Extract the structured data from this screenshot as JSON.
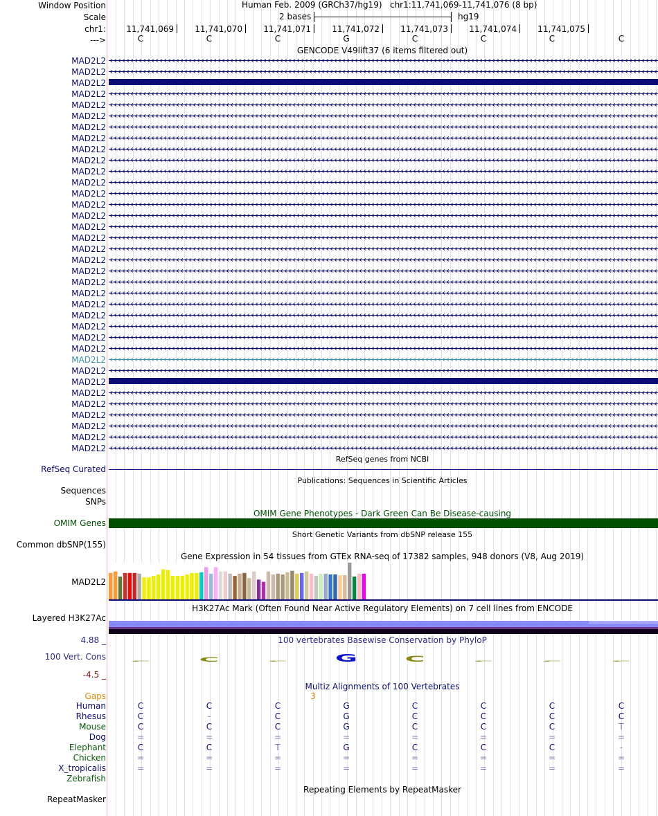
{
  "header": {
    "window_position_label": "Window Position",
    "scale_label": "Scale",
    "chr_label": "chr1:",
    "strand_label": "--->",
    "assembly_title": "Human Feb. 2009 (GRCh37/hg19)",
    "position": "chr1:11,741,069-11,741,076 (8 bp)",
    "scale_text": "2 bases",
    "db": "hg19",
    "coords": [
      "11,741,069",
      "11,741,070",
      "11,741,071",
      "11,741,072",
      "11,741,073",
      "11,741,074",
      "11,741,075"
    ],
    "bases": [
      "C",
      "C",
      "C",
      "G",
      "C",
      "C",
      "C",
      "C"
    ]
  },
  "gencode": {
    "title": "GENCODE V49lift37 (6 items filtered out)",
    "gene_label": "MAD2L2",
    "row_styles": [
      "arrow",
      "arrow",
      "block",
      "arrow",
      "arrow",
      "arrow",
      "arrow",
      "arrow",
      "arrow",
      "arrow",
      "arrow",
      "arrow",
      "arrow",
      "arrow",
      "arrow",
      "arrow",
      "arrow",
      "arrow",
      "arrow",
      "arrow",
      "arrow",
      "arrow",
      "arrow",
      "arrow",
      "arrow",
      "arrow",
      "arrow",
      "teal",
      "arrow",
      "block",
      "arrow",
      "arrow",
      "arrow",
      "arrow",
      "arrow",
      "arrow"
    ],
    "colors": {
      "navy": "#0c0c78",
      "teal": "#3a8fa8"
    }
  },
  "refseq": {
    "title": "RefSeq genes from NCBI",
    "label": "RefSeq Curated"
  },
  "publications": {
    "title": "Publications: Sequences in Scientific Articles",
    "label1": "Sequences",
    "label2": "SNPs"
  },
  "omim": {
    "title": "OMIM Gene Phenotypes - Dark Green Can Be Disease-causing",
    "label": "OMIM Genes",
    "color": "#005000"
  },
  "dbsnp": {
    "title": "Short Genetic Variants from dbSNP release 155",
    "label": "Common dbSNP(155)"
  },
  "gtex": {
    "title": "Gene Expression in 54 tissues from GTEx RNA-seq of 17382 samples, 948 donors (V8, Aug 2019)",
    "label": "MAD2L2",
    "bars": [
      {
        "v": 0.72,
        "c": "#ff9933"
      },
      {
        "v": 0.76,
        "c": "#ff9933"
      },
      {
        "v": 0.62,
        "c": "#5a7a3a"
      },
      {
        "v": 0.72,
        "c": "#cc3333"
      },
      {
        "v": 0.72,
        "c": "#ff0000"
      },
      {
        "v": 0.72,
        "c": "#cc2222"
      },
      {
        "v": 0.7,
        "c": "#aaaaaa"
      },
      {
        "v": 0.6,
        "c": "#eeee00"
      },
      {
        "v": 0.6,
        "c": "#eeee00"
      },
      {
        "v": 0.64,
        "c": "#eeee00"
      },
      {
        "v": 0.68,
        "c": "#eeee00"
      },
      {
        "v": 0.82,
        "c": "#eeee00"
      },
      {
        "v": 0.8,
        "c": "#eeee00"
      },
      {
        "v": 0.64,
        "c": "#eeee00"
      },
      {
        "v": 0.64,
        "c": "#eeee00"
      },
      {
        "v": 0.64,
        "c": "#eeee00"
      },
      {
        "v": 0.68,
        "c": "#eeee00"
      },
      {
        "v": 0.72,
        "c": "#eeee00"
      },
      {
        "v": 0.72,
        "c": "#eeee00"
      },
      {
        "v": 0.74,
        "c": "#00cccc"
      },
      {
        "v": 0.88,
        "c": "#ee99ee"
      },
      {
        "v": 0.7,
        "c": "#99bbdd"
      },
      {
        "v": 0.88,
        "c": "#ffaaff"
      },
      {
        "v": 0.76,
        "c": "#dddddd"
      },
      {
        "v": 0.76,
        "c": "#eecccc"
      },
      {
        "v": 0.7,
        "c": "#bbbbbb"
      },
      {
        "v": 0.64,
        "c": "#996633"
      },
      {
        "v": 0.7,
        "c": "#ccaa88"
      },
      {
        "v": 0.72,
        "c": "#886644"
      },
      {
        "v": 0.58,
        "c": "#ccbb99"
      },
      {
        "v": 0.76,
        "c": "#ddcccc"
      },
      {
        "v": 0.54,
        "c": "#883399"
      },
      {
        "v": 0.48,
        "c": "#aa33aa"
      },
      {
        "v": 0.76,
        "c": "#ccbbaa"
      },
      {
        "v": 0.68,
        "c": "#ccbbaa"
      },
      {
        "v": 0.7,
        "c": "#aa9977"
      },
      {
        "v": 0.68,
        "c": "#aa9977"
      },
      {
        "v": 0.74,
        "c": "#ccbb99"
      },
      {
        "v": 0.78,
        "c": "#998866"
      },
      {
        "v": 0.7,
        "c": "#ddcc55"
      },
      {
        "v": 0.72,
        "c": "#6666ff"
      },
      {
        "v": 0.76,
        "c": "#cccc99"
      },
      {
        "v": 0.7,
        "c": "#ffbbcc"
      },
      {
        "v": 0.64,
        "c": "#bbccbb"
      },
      {
        "v": 0.7,
        "c": "#cceebb"
      },
      {
        "v": 0.7,
        "c": "#99aacc"
      },
      {
        "v": 0.68,
        "c": "#3377cc"
      },
      {
        "v": 0.68,
        "c": "#3366bb"
      },
      {
        "v": 0.66,
        "c": "#ffcc99"
      },
      {
        "v": 0.66,
        "c": "#ddbb99"
      },
      {
        "v": 1.0,
        "c": "#999999"
      },
      {
        "v": 0.62,
        "c": "#008844"
      },
      {
        "v": 0.7,
        "c": "#ffbbbb"
      },
      {
        "v": 0.7,
        "c": "#ee00ee"
      }
    ]
  },
  "h3k27": {
    "title": "H3K27Ac Mark (Often Found Near Active Regulatory Elements) on 7 cell lines from ENCODE",
    "label": "Layered H3K27Ac"
  },
  "phylop": {
    "title": "100 vertebrates Basewise Conservation by PhyloP",
    "label": "100 Vert. Cons",
    "max_label": "4.88 _",
    "min_label": "-4.5 _",
    "values": [
      0.1,
      1.6,
      0,
      2.6,
      2.0,
      0.1,
      0.3,
      0.1
    ],
    "letters": [
      "C",
      "C",
      "C",
      "G",
      "C",
      "C",
      "C",
      "C"
    ],
    "colors": {
      "C": "#8a8a10",
      "G": "#0a14c8"
    }
  },
  "multiz": {
    "title": "Multiz Alignments of 100 Vertebrates",
    "gaps_label": "Gaps",
    "gaps_value": "3",
    "species": [
      {
        "name": "Human",
        "color": "#0c0c78",
        "seq": [
          "C",
          "C",
          "C",
          "G",
          "C",
          "C",
          "C",
          "C"
        ]
      },
      {
        "name": "Rhesus",
        "color": "#0c0c78",
        "seq": [
          "C",
          "-",
          "C",
          "G",
          "C",
          "C",
          "C",
          "C"
        ]
      },
      {
        "name": "Mouse",
        "color": "#0b5a0b",
        "seq": [
          "C",
          "C",
          "C",
          "G",
          "C",
          "C",
          "C",
          "T"
        ]
      },
      {
        "name": "Dog",
        "color": "#0c0c78",
        "seq": [
          "=",
          "=",
          "=",
          "=",
          "=",
          "=",
          "=",
          "="
        ]
      },
      {
        "name": "Elephant",
        "color": "#0b5a0b",
        "seq": [
          "C",
          "C",
          "T",
          "G",
          "C",
          "C",
          "C",
          "-"
        ]
      },
      {
        "name": "Chicken",
        "color": "#0b5a0b",
        "seq": [
          "=",
          "=",
          "=",
          "=",
          "=",
          "=",
          "=",
          "="
        ]
      },
      {
        "name": "X_tropicalis",
        "color": "#0c0c78",
        "seq": [
          "=",
          "=",
          "=",
          "=",
          "=",
          "=",
          "=",
          "="
        ]
      },
      {
        "name": "Zebrafish",
        "color": "#0b5a0b",
        "seq": [
          "",
          "",
          "",
          "",
          "",
          "",
          "",
          ""
        ]
      }
    ]
  },
  "repeatmasker": {
    "title": "Repeating Elements by RepeatMasker",
    "label": "RepeatMasker"
  }
}
